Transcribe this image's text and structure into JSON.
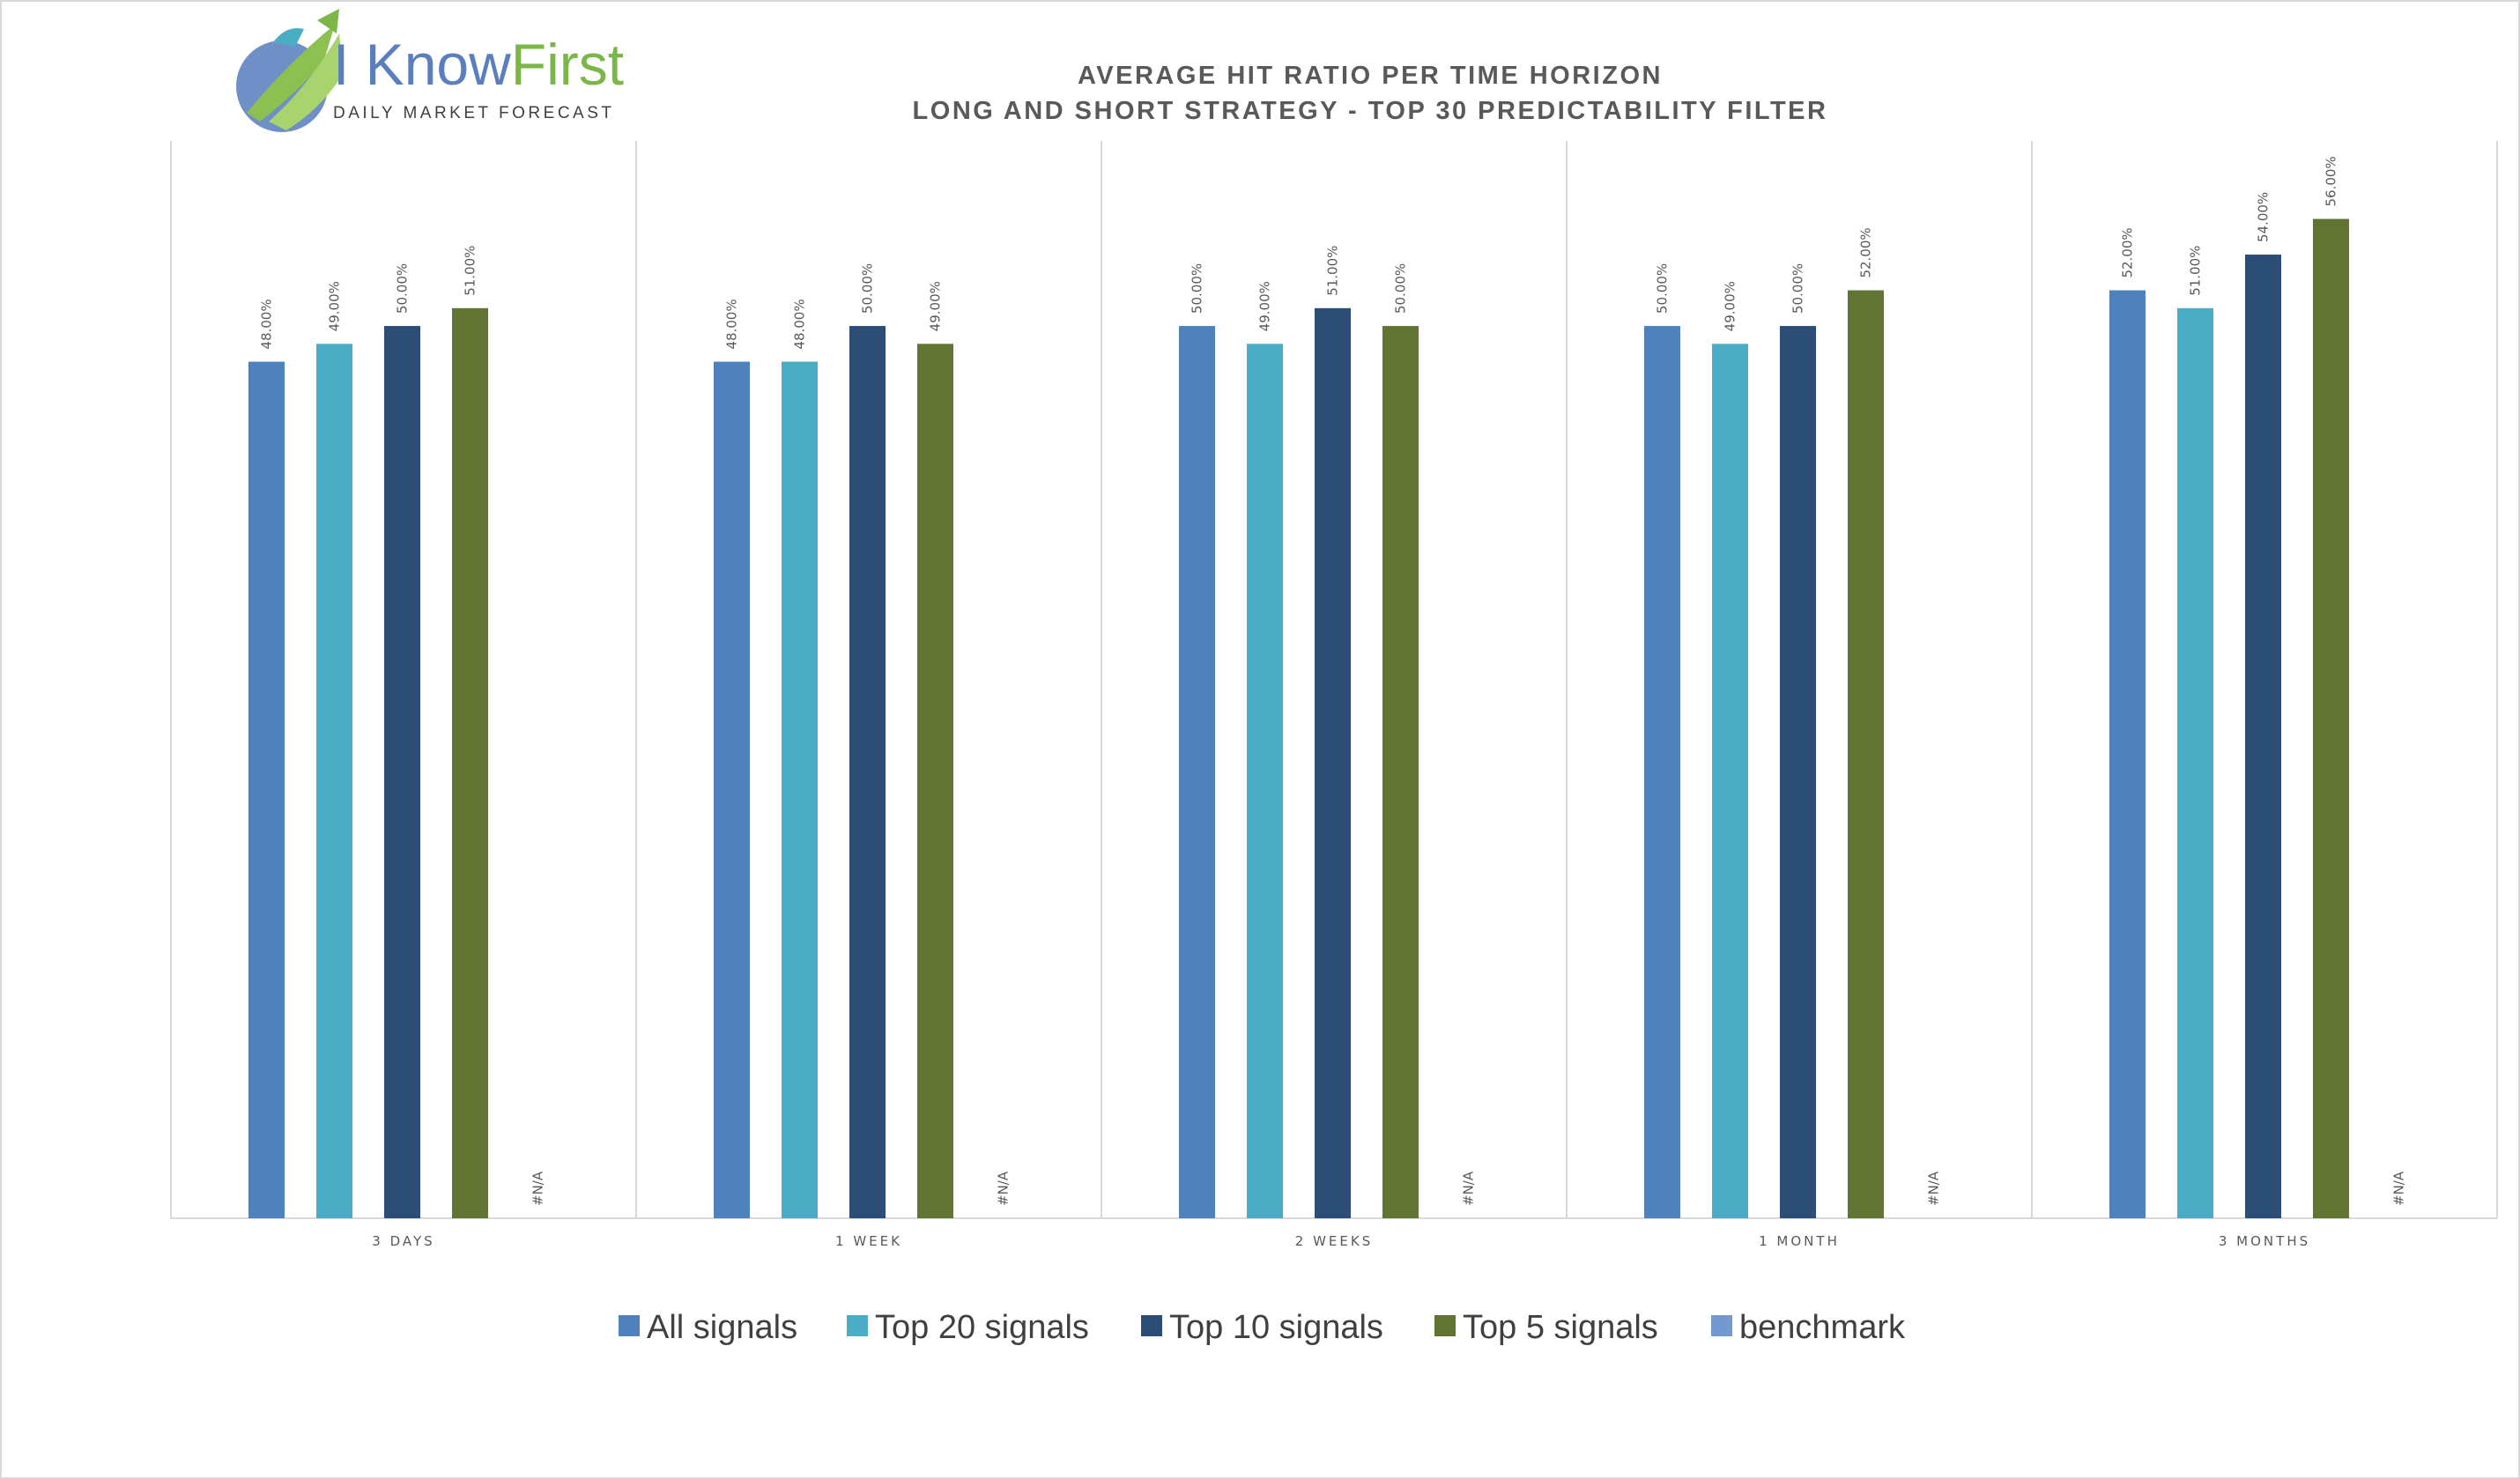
{
  "logo": {
    "text_main": "I Know",
    "text_accent": "First",
    "tagline": "Daily Market Forecast"
  },
  "chart_data": {
    "type": "bar",
    "title": "AVERAGE HIT RATIO PER TIME HORIZON",
    "subtitle": "LONG AND SHORT STRATEGY - TOP 30 PREDICTABILITY FILTER",
    "xlabel": "",
    "ylabel": "",
    "ylim": [
      0,
      0.6
    ],
    "grid": false,
    "legend_position": "bottom",
    "categories": [
      "3 DAYS",
      "1 WEEK",
      "2 WEEKS",
      "1 MONTH",
      "3 MONTHS"
    ],
    "series": [
      {
        "name": "All signals",
        "color": "#4f81bd",
        "values": [
          0.48,
          0.48,
          0.5,
          0.5,
          0.52
        ],
        "labels": [
          "48.00%",
          "48.00%",
          "50.00%",
          "50.00%",
          "52.00%"
        ]
      },
      {
        "name": "Top 20 signals",
        "color": "#4bacc6",
        "values": [
          0.49,
          0.48,
          0.49,
          0.49,
          0.51
        ],
        "labels": [
          "49.00%",
          "48.00%",
          "49.00%",
          "49.00%",
          "51.00%"
        ]
      },
      {
        "name": "Top 10 signals",
        "color": "#2c4d75",
        "values": [
          0.5,
          0.5,
          0.51,
          0.5,
          0.54
        ],
        "labels": [
          "50.00%",
          "50.00%",
          "51.00%",
          "50.00%",
          "54.00%"
        ]
      },
      {
        "name": "Top 5 signals",
        "color": "#617431",
        "values": [
          0.51,
          0.49,
          0.5,
          0.52,
          0.56
        ],
        "labels": [
          "51.00%",
          "49.00%",
          "50.00%",
          "52.00%",
          "56.00%"
        ]
      },
      {
        "name": "benchmark",
        "color": "#7299d2",
        "values": [
          null,
          null,
          null,
          null,
          null
        ],
        "labels": [
          "#N/A",
          "#N/A",
          "#N/A",
          "#N/A",
          "#N/A"
        ]
      }
    ]
  }
}
